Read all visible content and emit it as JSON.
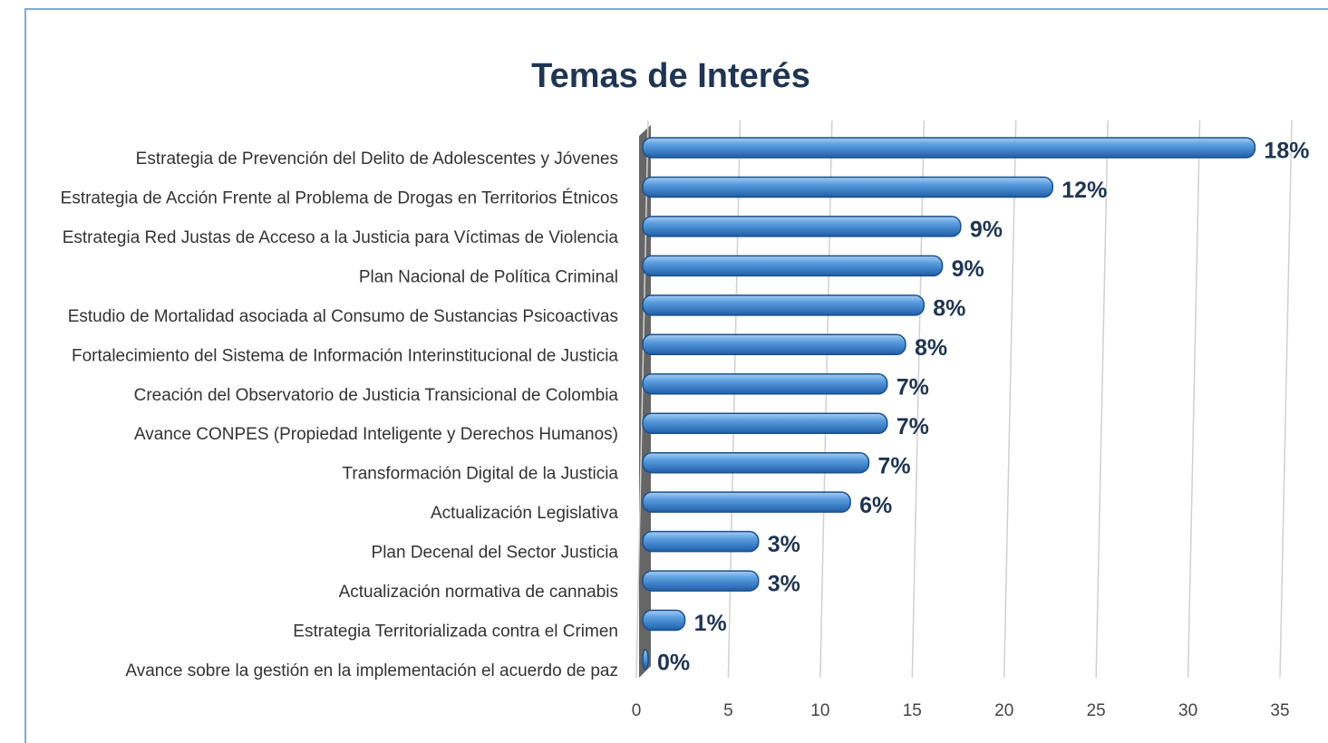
{
  "chart_data": {
    "type": "bar",
    "orientation": "horizontal",
    "title": "Temas de Interés",
    "categories": [
      "Estrategia de Prevención del Delito de Adolescentes y Jóvenes",
      "Estrategia de Acción Frente al Problema de Drogas en Territorios Étnicos",
      "Estrategia Red Justas de Acceso a la Justicia para Víctimas de Violencia",
      "Plan Nacional de Política Criminal",
      "Estudio de Mortalidad asociada al Consumo de Sustancias Psicoactivas",
      "Fortalecimiento del Sistema de Información Interinstitucional de Justicia",
      "Creación del Observatorio de Justicia Transicional de Colombia",
      "Avance CONPES (Propiedad Inteligente y Derechos Humanos)",
      "Transformación Digital de la Justicia",
      "Actualización Legislativa",
      "Plan Decenal del Sector Justicia",
      "Actualización normativa de cannabis",
      "Estrategia Territorializada contra el Crimen",
      "Avance sobre la gestión en la implementación el acuerdo de paz"
    ],
    "values": [
      33,
      22,
      17,
      16,
      15,
      14,
      13,
      13,
      12,
      11,
      6,
      6,
      2,
      0
    ],
    "value_labels": [
      "18%",
      "12%",
      "9%",
      "9%",
      "8%",
      "8%",
      "7%",
      "7%",
      "7%",
      "6%",
      "3%",
      "3%",
      "1%",
      "0%"
    ],
    "color": "#4a8fd8",
    "xlim": [
      0,
      35
    ],
    "xticks": [
      0,
      5,
      10,
      15,
      20,
      25,
      30,
      35
    ],
    "grid": true
  }
}
